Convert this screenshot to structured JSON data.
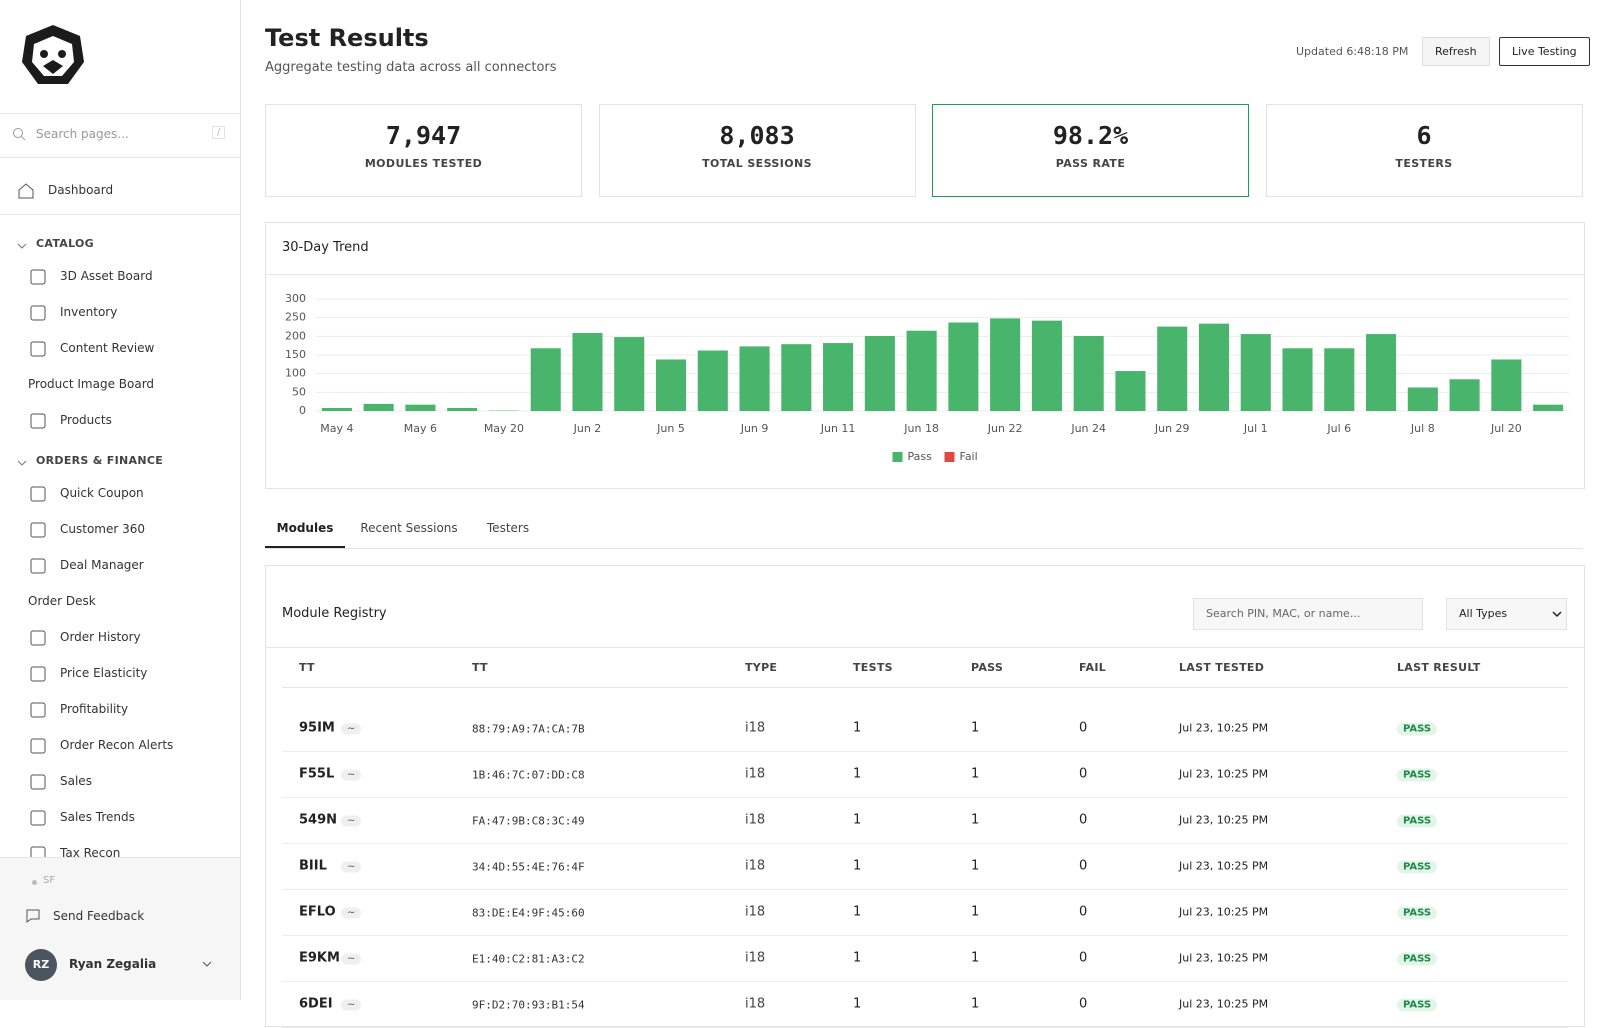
{
  "sidebar": {
    "search_placeholder": "Search pages...",
    "search_shortcut": "/",
    "dashboard": "Dashboard",
    "sections": [
      {
        "title": "CATALOG",
        "items": [
          "3D Asset Board",
          "Inventory",
          "Content Review",
          "Product Image Board",
          "Products"
        ]
      },
      {
        "title": "ORDERS & FINANCE",
        "items": [
          "Quick Coupon",
          "Customer 360",
          "Deal Manager",
          "Order Desk",
          "Order History",
          "Price Elasticity",
          "Profitability",
          "Order Recon Alerts",
          "Sales",
          "Sales Trends",
          "Tax Recon"
        ]
      }
    ],
    "status": "SF",
    "feedback": "Send Feedback",
    "user": {
      "initials": "RZ",
      "name": "Ryan Zegalia"
    }
  },
  "header": {
    "title": "Test Results",
    "subtitle": "Aggregate testing data across all connectors",
    "updated": "Updated 6:48:18 PM",
    "refresh": "Refresh",
    "live": "Live Testing"
  },
  "stats": [
    {
      "value": "7,947",
      "label": "MODULES TESTED"
    },
    {
      "value": "8,083",
      "label": "TOTAL SESSIONS"
    },
    {
      "value": "98.2%",
      "label": "PASS RATE"
    },
    {
      "value": "6",
      "label": "TESTERS"
    }
  ],
  "chart_data": {
    "type": "bar",
    "title": "30-Day Trend",
    "stacked": true,
    "categories": [
      "May 4",
      null,
      "May 6",
      null,
      "May 20",
      null,
      "Jun 2",
      null,
      "Jun 5",
      null,
      "Jun 9",
      null,
      "Jun 11",
      null,
      "Jun 18",
      null,
      "Jun 22",
      null,
      "Jun 24",
      null,
      "Jun 29",
      null,
      "Jul 1",
      null,
      "Jul 6",
      null,
      "Jul 8",
      null,
      "Jul 20",
      null
    ],
    "series": [
      {
        "name": "Pass",
        "color": "#48b46c",
        "values": [
          8,
          19,
          17,
          8,
          1,
          168,
          209,
          198,
          138,
          162,
          173,
          179,
          182,
          201,
          215,
          237,
          248,
          242,
          201,
          107,
          226,
          234,
          206,
          168,
          168,
          206,
          63,
          85,
          138,
          17
        ]
      },
      {
        "name": "Fail",
        "color": "#e04848",
        "values": [
          0,
          0,
          0,
          0,
          0,
          0,
          0,
          0,
          0,
          0,
          0,
          0,
          0,
          0,
          0,
          0,
          0,
          0,
          0,
          0,
          0,
          0,
          0,
          0,
          0,
          0,
          0,
          0,
          0,
          0
        ]
      }
    ],
    "ylim": [
      0,
      300
    ],
    "yticks": [
      0,
      50,
      100,
      150,
      200,
      250,
      300
    ],
    "grid": true,
    "legend": "bottom"
  },
  "tabs": [
    "Modules",
    "Recent Sessions",
    "Testers"
  ],
  "registry": {
    "title": "Module Registry",
    "search_placeholder": "Search PIN, MAC, or name...",
    "filter": "All Types",
    "columns": [
      "TT",
      "TT",
      "TYPE",
      "TESTS",
      "PASS",
      "FAIL",
      "LAST TESTED",
      "LAST RESULT"
    ],
    "rows": [
      [
        "95IM",
        "~",
        "88:79:A9:7A:CA:7B",
        "i18",
        1,
        1,
        0,
        "Jul 23, 10:25 PM",
        "PASS"
      ],
      [
        "F55L",
        "~",
        "1B:46:7C:07:DD:C8",
        "i18",
        1,
        1,
        0,
        "Jul 23, 10:25 PM",
        "PASS"
      ],
      [
        "549N",
        "~",
        "FA:47:9B:C8:3C:49",
        "i18",
        1,
        1,
        0,
        "Jul 23, 10:25 PM",
        "PASS"
      ],
      [
        "BIIL",
        "~",
        "34:4D:55:4E:76:4F",
        "i18",
        1,
        1,
        0,
        "Jul 23, 10:25 PM",
        "PASS"
      ],
      [
        "EFLO",
        "~",
        "83:DE:E4:9F:45:60",
        "i18",
        1,
        1,
        0,
        "Jul 23, 10:25 PM",
        "PASS"
      ],
      [
        "E9KM",
        "~",
        "E1:40:C2:81:A3:C2",
        "i18",
        1,
        1,
        0,
        "Jul 23, 10:25 PM",
        "PASS"
      ],
      [
        "6DEI",
        "~",
        "9F:D2:70:93:B1:54",
        "i18",
        1,
        1,
        0,
        "Jul 23, 10:25 PM",
        "PASS"
      ]
    ]
  }
}
